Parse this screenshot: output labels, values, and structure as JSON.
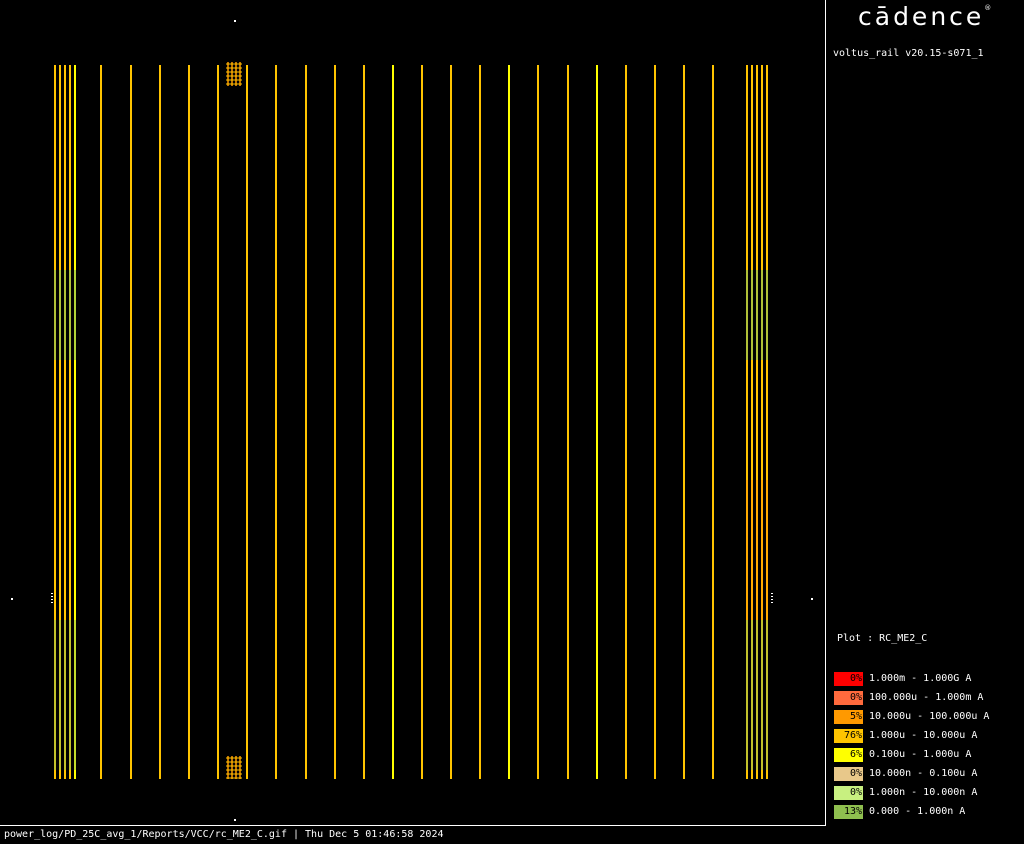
{
  "brand": {
    "logo_text": "cādence",
    "logo_mark": "®"
  },
  "tool_version": "voltus_rail v20.15-s071_1",
  "plot_label": "Plot : RC_ME2_C",
  "legend": [
    {
      "pct": "0%",
      "range": "1.000m - 1.000G A",
      "color": "#ff0000"
    },
    {
      "pct": "0%",
      "range": "100.000u - 1.000m A",
      "color": "#ff6a3d"
    },
    {
      "pct": "5%",
      "range": "10.000u - 100.000u A",
      "color": "#ff9900"
    },
    {
      "pct": "76%",
      "range": "1.000u - 10.000u A",
      "color": "#ffc400"
    },
    {
      "pct": "6%",
      "range": "0.100u - 1.000u A",
      "color": "#ffff00"
    },
    {
      "pct": "0%",
      "range": "10.000n - 0.100u A",
      "color": "#e8c88a"
    },
    {
      "pct": "0%",
      "range": "1.000n - 10.000n A",
      "color": "#c8f080"
    },
    {
      "pct": "13%",
      "range": "0.000 - 1.000n A",
      "color": "#8fbf4f"
    }
  ],
  "footer": "power_log/PD_25C_avg_1/Reports/VCC/rc_ME2_C.gif | Thu Dec  5 01:46:58 2024",
  "rail_colors": {
    "main": "#ffc400",
    "bright": "#ffff00",
    "warm": "#ff9900",
    "low": "#8fbf4f"
  }
}
